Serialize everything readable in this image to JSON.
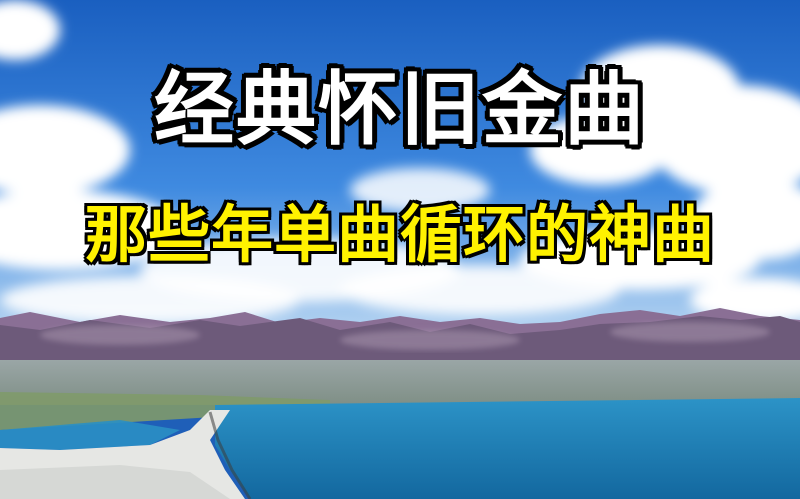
{
  "title": "经典怀旧金曲",
  "subtitle": "那些年单曲循环的神曲",
  "colors": {
    "sky_top": "#1a5fc0",
    "sky_mid": "#3f8ae0",
    "sky_horizon": "#bcd8f2",
    "cloud": "#ffffff",
    "mountain_far": "#8a6f95",
    "mountain_near": "#6d5a7a",
    "plain": "#8d9c9a",
    "grass": "#7f9a6a",
    "lake": "#1e7fb7",
    "lake_deep": "#13689f",
    "shore": "#e6e7e4",
    "title_text": "#ffffff",
    "subtitle_text": "#fff200",
    "outline": "#000000"
  }
}
